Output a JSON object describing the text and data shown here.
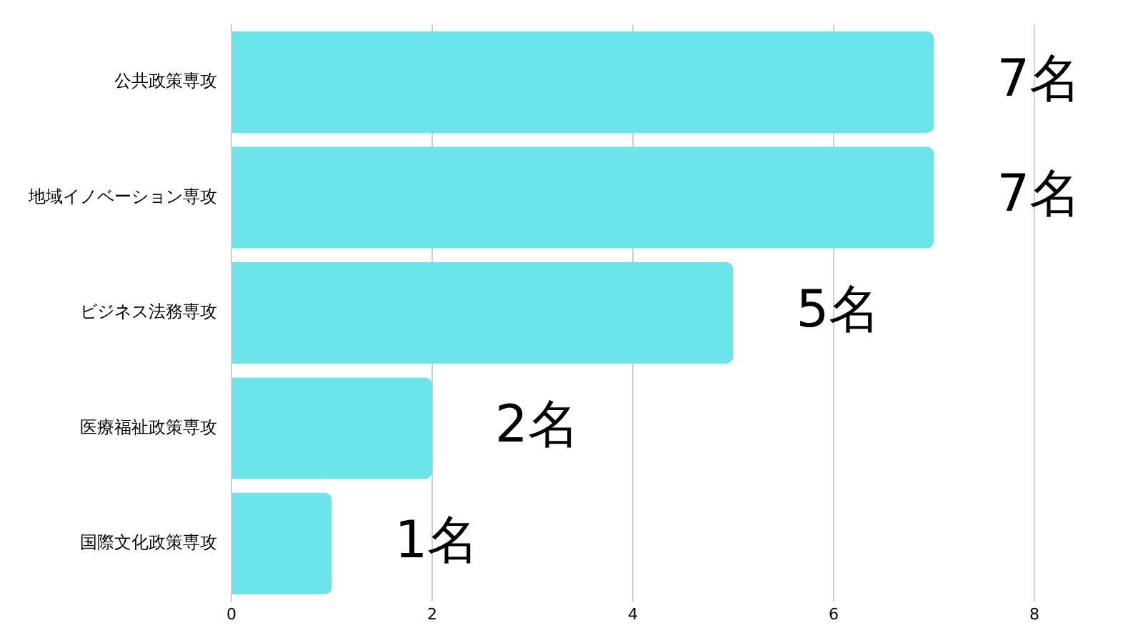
{
  "chart_data": {
    "type": "bar",
    "orientation": "horizontal",
    "categories": [
      "公共政策専攻",
      "地域イノベーション専攻",
      "ビジネス法務専攻",
      "医療福祉政策専攻",
      "国際文化政策専攻"
    ],
    "values": [
      7,
      7,
      5,
      2,
      1
    ],
    "value_labels": [
      "7名",
      "7名",
      "5名",
      "2名",
      "1名"
    ],
    "color": "#6be5ea",
    "xlim": [
      0,
      8
    ],
    "xticks": [
      0,
      2,
      4,
      6,
      8
    ],
    "grid": "x",
    "legend": false
  }
}
